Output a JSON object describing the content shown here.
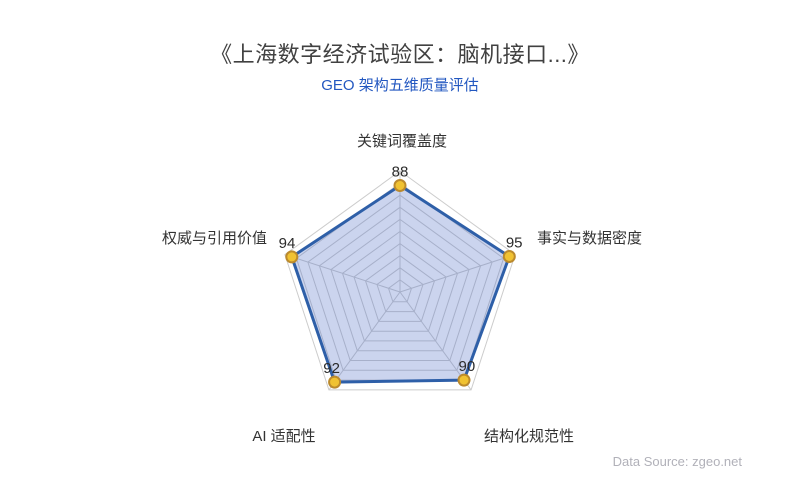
{
  "header": {
    "title": "《上海数字经济试验区：脑机接口...》",
    "subtitle": "GEO 架构五维质量评估"
  },
  "footer": {
    "data_source": "Data Source: zgeo.net"
  },
  "chart_data": {
    "type": "radar",
    "title": "GEO 架构五维质量评估",
    "grid_levels": 10,
    "axis_range": [
      0,
      100
    ],
    "legend_position": "none",
    "indicators": [
      {
        "name": "关键词覆盖度",
        "max": 100
      },
      {
        "name": "事实与数据密度",
        "max": 100
      },
      {
        "name": "结构化规范性",
        "max": 100
      },
      {
        "name": "AI 适配性",
        "max": 100
      },
      {
        "name": "权威与引用价值",
        "max": 100
      }
    ],
    "series": [
      {
        "name": "GEO 架构五维质量评估",
        "values": [
          88,
          95,
          90,
          92,
          94
        ]
      }
    ],
    "colors": {
      "line": "#2e5fa8",
      "fill": "rgba(84, 112, 198, 0.30)",
      "point_fill": "#f0c232",
      "point_border": "#bb8a2d",
      "grid": "#cccccc",
      "value_label": "#2b2b2b",
      "axis_label": "#333333",
      "subtitle": "#2257c0",
      "title": "#414141",
      "source": "#b1b1b9"
    }
  }
}
